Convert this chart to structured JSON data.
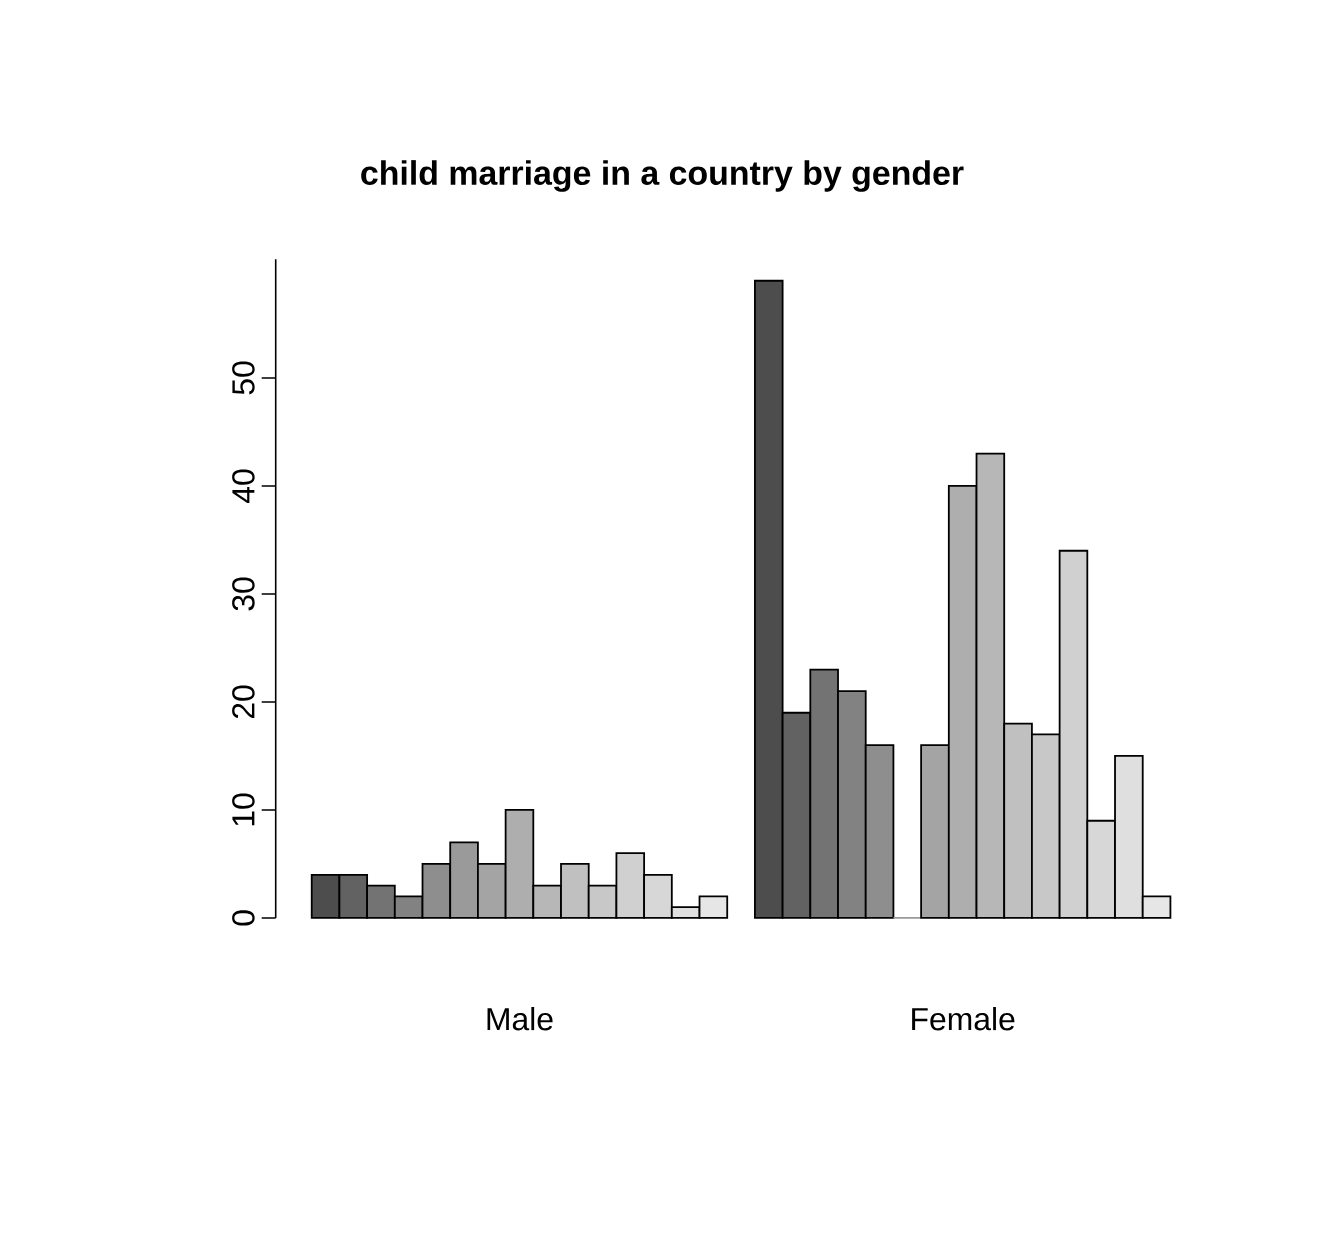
{
  "chart_data": {
    "type": "bar",
    "title": "child marriage in a country by gender",
    "categories": [
      "Male",
      "Female"
    ],
    "series": [
      {
        "color": "#4d4d4d",
        "values": [
          4,
          59
        ]
      },
      {
        "color": "#626262",
        "values": [
          4,
          19
        ]
      },
      {
        "color": "#737373",
        "values": [
          3,
          23
        ]
      },
      {
        "color": "#828282",
        "values": [
          2,
          21
        ]
      },
      {
        "color": "#8e8e8e",
        "values": [
          5,
          16
        ]
      },
      {
        "color": "#9a9a9a",
        "values": [
          7,
          0
        ]
      },
      {
        "color": "#a4a4a4",
        "values": [
          5,
          16
        ]
      },
      {
        "color": "#aeaeae",
        "values": [
          10,
          40
        ]
      },
      {
        "color": "#b7b7b7",
        "values": [
          3,
          43
        ]
      },
      {
        "color": "#c0c0c0",
        "values": [
          5,
          18
        ]
      },
      {
        "color": "#c8c8c8",
        "values": [
          3,
          17
        ]
      },
      {
        "color": "#d0d0d0",
        "values": [
          6,
          34
        ]
      },
      {
        "color": "#d7d7d7",
        "values": [
          4,
          9
        ]
      },
      {
        "color": "#dfdfdf",
        "values": [
          1,
          15
        ]
      },
      {
        "color": "#e6e6e6",
        "values": [
          2,
          2
        ]
      }
    ],
    "ylim": [
      0,
      61
    ],
    "yticks": [
      0,
      10,
      20,
      30,
      40,
      50
    ]
  }
}
